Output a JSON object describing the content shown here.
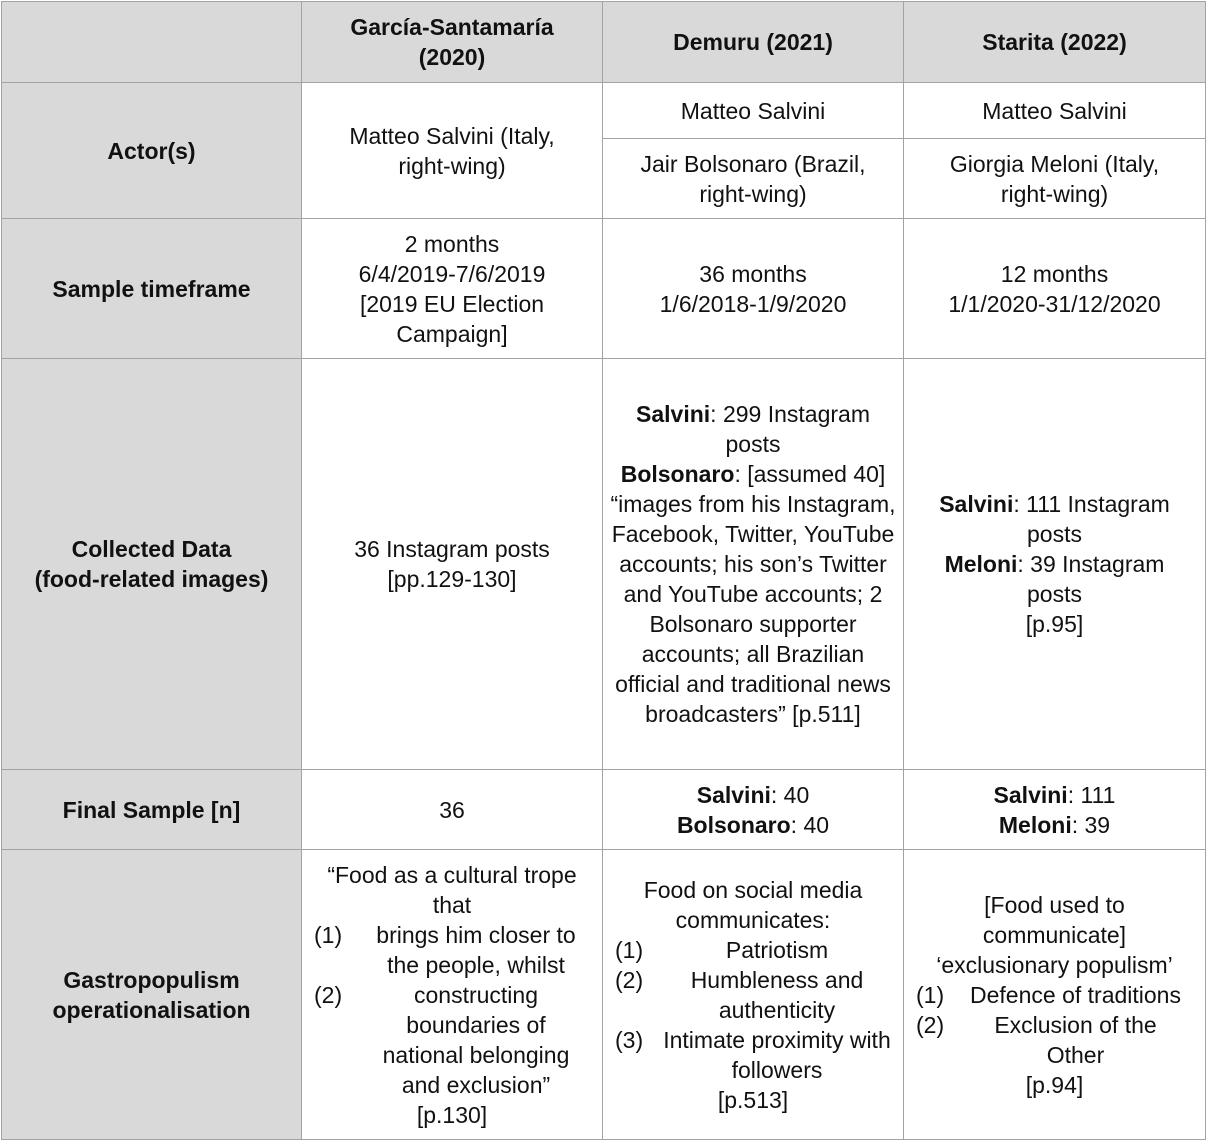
{
  "header": {
    "corner": "",
    "col1": "García-Santamaría (2020)",
    "col2": "Demuru (2021)",
    "col3": "Starita (2022)"
  },
  "actors": {
    "label": "Actor(s)",
    "col1": "Matteo Salvini (Italy, right-wing)",
    "col2_a": "Matteo Salvini",
    "col2_b": "Jair Bolsonaro (Brazil, right-wing)",
    "col3_a": "Matteo Salvini",
    "col3_b": "Giorgia Meloni (Italy, right-wing)"
  },
  "timeframe": {
    "label": "Sample timeframe",
    "col1": [
      "2 months",
      "6/4/2019-7/6/2019",
      "[2019 EU Election Campaign]"
    ],
    "col2": [
      "36 months",
      "1/6/2018-1/9/2020"
    ],
    "col3": [
      "12 months",
      "1/1/2020-31/12/2020"
    ]
  },
  "collected": {
    "label_line1": "Collected Data",
    "label_line2": "(food-related images)",
    "col1_line1": "36 Instagram posts",
    "col1_line2": "[pp.129-130]",
    "col2_salvini_name": "Salvini",
    "col2_salvini_text": ": 299 Instagram posts",
    "col2_bolsonaro_name": "Bolsonaro",
    "col2_bolsonaro_text": ": [assumed 40] “images from his Instagram, Facebook, Twitter, YouTube accounts; his son’s Twitter and YouTube accounts; 2 Bolsonaro supporter accounts; all Brazilian official and traditional news broadcasters” [p.511]",
    "col3_salvini_name": "Salvini",
    "col3_salvini_text": ": 111 Instagram posts",
    "col3_meloni_name": "Meloni",
    "col3_meloni_text": ": 39 Instagram posts",
    "col3_ref": "[p.95]"
  },
  "final_sample": {
    "label": "Final Sample [n]",
    "col1": "36",
    "col2_salvini_name": "Salvini",
    "col2_salvini_value": ": 40",
    "col2_bolsonaro_name": "Bolsonaro",
    "col2_bolsonaro_value": ": 40",
    "col3_salvini_name": "Salvini",
    "col3_salvini_value": ": 111",
    "col3_meloni_name": "Meloni",
    "col3_meloni_value": ": 39"
  },
  "operationalisation": {
    "label": "Gastropopulism operationalisation",
    "col1_intro": "“Food as a cultural trope that",
    "col1_items": [
      {
        "num": "(1)",
        "text": "brings him closer to the people, whilst"
      },
      {
        "num": "(2)",
        "text": "constructing boundaries of national belonging and exclusion”"
      }
    ],
    "col1_ref": "[p.130]",
    "col2_intro": "Food on social media communicates:",
    "col2_items": [
      {
        "num": "(1)",
        "text": "Patriotism"
      },
      {
        "num": "(2)",
        "text": "Humbleness and authenticity"
      },
      {
        "num": "(3)",
        "text": "Intimate proximity with followers"
      }
    ],
    "col2_ref": "[p.513]",
    "col3_intro": "[Food used to communicate] ‘exclusionary populism’",
    "col3_items": [
      {
        "num": "(1)",
        "text": "Defence of traditions"
      },
      {
        "num": "(2)",
        "text": "Exclusion of the Other"
      }
    ],
    "col3_ref": "[p.94]"
  }
}
